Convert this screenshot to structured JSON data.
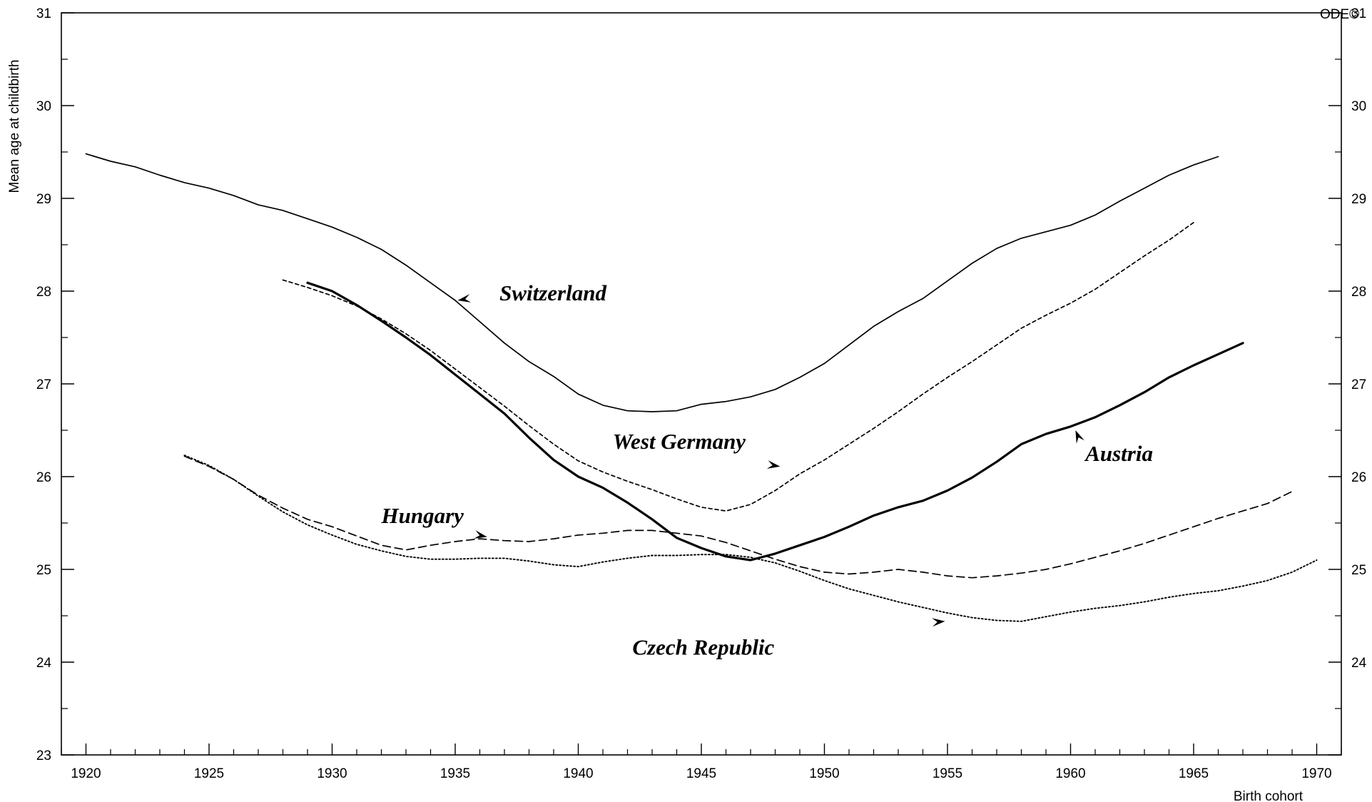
{
  "chart_data": {
    "type": "line",
    "xlabel": "Birth cohort",
    "ylabel": "Mean age at childbirth",
    "xlim": [
      1919,
      1971
    ],
    "ylim": [
      23,
      31
    ],
    "x_ticks": [
      "1920",
      "1925",
      "1930",
      "1935",
      "1940",
      "1945",
      "1950",
      "1955",
      "1960",
      "1965",
      "1970"
    ],
    "y_ticks": [
      "23",
      "24",
      "25",
      "26",
      "27",
      "28",
      "29",
      "30",
      "31"
    ],
    "watermark": "ODE©",
    "grid": false,
    "series": [
      {
        "name": "Switzerland",
        "style": "solid-thin",
        "label_at": [
          1936.8,
          27.9
        ],
        "arrow_to": [
          1935.1,
          27.9
        ],
        "x": [
          1920,
          1921,
          1922,
          1923,
          1924,
          1925,
          1926,
          1927,
          1928,
          1929,
          1930,
          1931,
          1932,
          1933,
          1934,
          1935,
          1936,
          1937,
          1938,
          1939,
          1940,
          1941,
          1942,
          1943,
          1944,
          1945,
          1946,
          1947,
          1948,
          1949,
          1950,
          1951,
          1952,
          1953,
          1954,
          1955,
          1956,
          1957,
          1958,
          1959,
          1960,
          1961,
          1962,
          1963,
          1964,
          1965,
          1966
        ],
        "values": [
          29.48,
          29.4,
          29.34,
          29.25,
          29.17,
          29.11,
          29.03,
          28.93,
          28.87,
          28.78,
          28.69,
          28.58,
          28.45,
          28.28,
          28.09,
          27.9,
          27.67,
          27.44,
          27.24,
          27.08,
          26.89,
          26.77,
          26.71,
          26.7,
          26.71,
          26.78,
          26.81,
          26.86,
          26.94,
          27.07,
          27.22,
          27.42,
          27.62,
          27.78,
          27.92,
          28.11,
          28.3,
          28.46,
          28.57,
          28.64,
          28.71,
          28.82,
          28.97,
          29.11,
          29.25,
          29.36,
          29.45
        ]
      },
      {
        "name": "West Germany",
        "style": "dashed-short",
        "label_at": [
          1941.4,
          26.3
        ],
        "arrow_to": [
          1948.2,
          26.11
        ],
        "x": [
          1928,
          1929,
          1930,
          1931,
          1932,
          1933,
          1934,
          1935,
          1936,
          1937,
          1938,
          1939,
          1940,
          1941,
          1942,
          1943,
          1944,
          1945,
          1946,
          1947,
          1948,
          1949,
          1950,
          1951,
          1952,
          1953,
          1954,
          1955,
          1956,
          1957,
          1958,
          1959,
          1960,
          1961,
          1962,
          1963,
          1964,
          1965
        ],
        "values": [
          28.12,
          28.04,
          27.95,
          27.84,
          27.7,
          27.54,
          27.36,
          27.16,
          26.96,
          26.76,
          26.55,
          26.35,
          26.17,
          26.05,
          25.95,
          25.86,
          25.76,
          25.67,
          25.63,
          25.7,
          25.85,
          26.03,
          26.18,
          26.35,
          26.52,
          26.7,
          26.89,
          27.07,
          27.24,
          27.42,
          27.6,
          27.74,
          27.87,
          28.02,
          28.2,
          28.38,
          28.55,
          28.74
        ]
      },
      {
        "name": "Austria",
        "style": "solid-thick",
        "label_at": [
          1960.6,
          26.17
        ],
        "arrow_to": [
          1960.2,
          26.5
        ],
        "x": [
          1929,
          1930,
          1931,
          1932,
          1933,
          1934,
          1935,
          1936,
          1937,
          1938,
          1939,
          1940,
          1941,
          1942,
          1943,
          1944,
          1945,
          1946,
          1947,
          1948,
          1949,
          1950,
          1951,
          1952,
          1953,
          1954,
          1955,
          1956,
          1957,
          1958,
          1959,
          1960,
          1961,
          1962,
          1963,
          1964,
          1965,
          1966,
          1967
        ],
        "values": [
          28.09,
          28.0,
          27.85,
          27.68,
          27.5,
          27.31,
          27.1,
          26.89,
          26.68,
          26.42,
          26.18,
          26.0,
          25.88,
          25.72,
          25.54,
          25.34,
          25.23,
          25.14,
          25.1,
          25.17,
          25.26,
          25.35,
          25.46,
          25.58,
          25.67,
          25.74,
          25.85,
          25.99,
          26.16,
          26.35,
          26.46,
          26.54,
          26.64,
          26.77,
          26.91,
          27.07,
          27.2,
          27.32,
          27.44
        ]
      },
      {
        "name": "Hungary",
        "style": "dashed-long",
        "label_at": [
          1932,
          25.5
        ],
        "arrow_to": [
          1936.3,
          25.35
        ],
        "x": [
          1924,
          1925,
          1926,
          1927,
          1928,
          1929,
          1930,
          1931,
          1932,
          1933,
          1934,
          1935,
          1936,
          1937,
          1938,
          1939,
          1940,
          1941,
          1942,
          1943,
          1944,
          1945,
          1946,
          1947,
          1948,
          1949,
          1950,
          1951,
          1952,
          1953,
          1954,
          1955,
          1956,
          1957,
          1958,
          1959,
          1960,
          1961,
          1962,
          1963,
          1964,
          1965,
          1966,
          1967,
          1968,
          1969
        ],
        "values": [
          26.22,
          26.11,
          25.97,
          25.8,
          25.66,
          25.54,
          25.46,
          25.36,
          25.26,
          25.21,
          25.26,
          25.3,
          25.33,
          25.31,
          25.3,
          25.33,
          25.37,
          25.39,
          25.42,
          25.42,
          25.39,
          25.36,
          25.29,
          25.2,
          25.11,
          25.03,
          24.97,
          24.95,
          24.97,
          25.0,
          24.97,
          24.93,
          24.91,
          24.93,
          24.96,
          25.0,
          25.06,
          25.13,
          25.2,
          25.28,
          25.37,
          25.46,
          25.55,
          25.63,
          25.71,
          25.84
        ]
      },
      {
        "name": "Czech Republic",
        "style": "dotted",
        "label_at": [
          1942.2,
          24.08
        ],
        "arrow_to": [
          1954.9,
          24.44
        ],
        "x": [
          1924,
          1925,
          1926,
          1927,
          1928,
          1929,
          1930,
          1931,
          1932,
          1933,
          1934,
          1935,
          1936,
          1937,
          1938,
          1939,
          1940,
          1941,
          1942,
          1943,
          1944,
          1945,
          1946,
          1947,
          1948,
          1949,
          1950,
          1951,
          1952,
          1953,
          1954,
          1955,
          1956,
          1957,
          1958,
          1959,
          1960,
          1961,
          1962,
          1963,
          1964,
          1965,
          1966,
          1967,
          1968,
          1969,
          1970
        ],
        "values": [
          26.23,
          26.12,
          25.97,
          25.79,
          25.62,
          25.48,
          25.37,
          25.27,
          25.2,
          25.14,
          25.11,
          25.11,
          25.12,
          25.12,
          25.09,
          25.05,
          25.03,
          25.08,
          25.12,
          25.15,
          25.15,
          25.16,
          25.16,
          25.13,
          25.07,
          24.98,
          24.88,
          24.79,
          24.72,
          24.65,
          24.59,
          24.53,
          24.48,
          24.45,
          24.44,
          24.49,
          24.54,
          24.58,
          24.61,
          24.65,
          24.7,
          24.74,
          24.77,
          24.82,
          24.88,
          24.97,
          25.1
        ]
      }
    ]
  }
}
